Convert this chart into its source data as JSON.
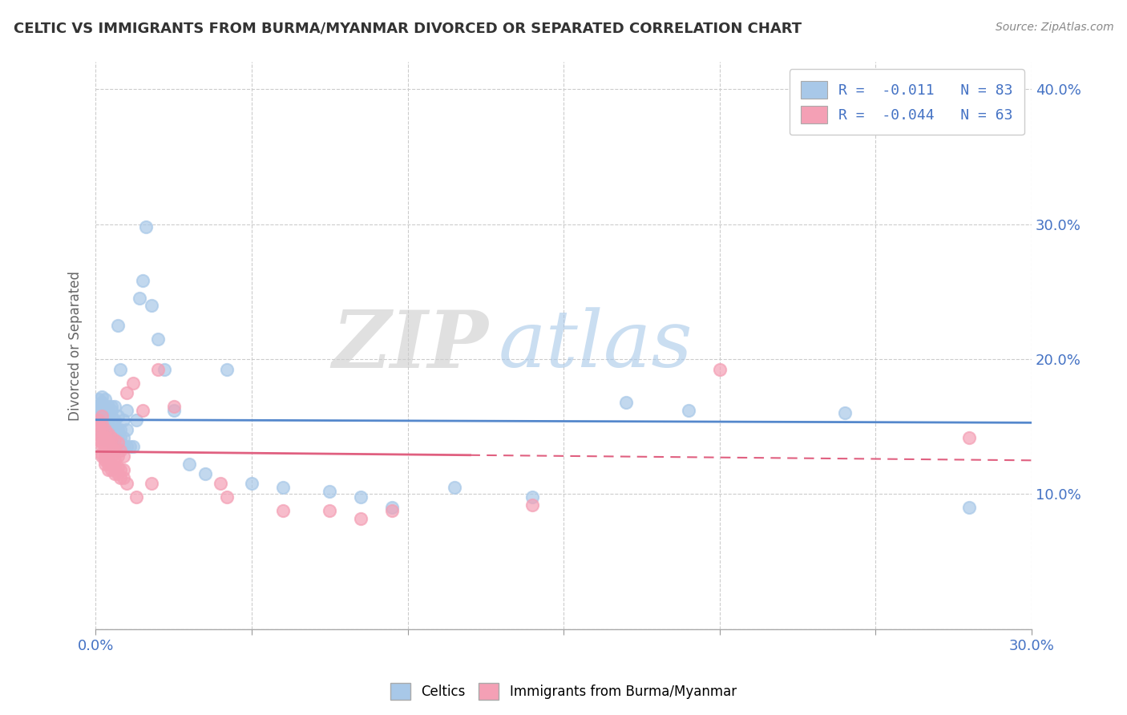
{
  "title": "CELTIC VS IMMIGRANTS FROM BURMA/MYANMAR DIVORCED OR SEPARATED CORRELATION CHART",
  "source": "Source: ZipAtlas.com",
  "ylabel": "Divorced or Separated",
  "xlim": [
    0.0,
    0.3
  ],
  "ylim": [
    0.0,
    0.42
  ],
  "blue_R": -0.011,
  "blue_N": 83,
  "pink_R": -0.044,
  "pink_N": 63,
  "blue_color": "#a8c8e8",
  "pink_color": "#f4a0b5",
  "blue_line_color": "#5588cc",
  "pink_line_color": "#e06080",
  "legend_label_blue": "Celtics",
  "legend_label_pink": "Immigrants from Burma/Myanmar",
  "watermark_zip": "ZIP",
  "watermark_atlas": "atlas",
  "blue_scatter_x": [
    0.001,
    0.001,
    0.001,
    0.001,
    0.001,
    0.002,
    0.002,
    0.002,
    0.002,
    0.002,
    0.002,
    0.002,
    0.002,
    0.002,
    0.003,
    0.003,
    0.003,
    0.003,
    0.003,
    0.003,
    0.003,
    0.003,
    0.004,
    0.004,
    0.004,
    0.004,
    0.004,
    0.004,
    0.004,
    0.004,
    0.005,
    0.005,
    0.005,
    0.005,
    0.005,
    0.005,
    0.005,
    0.005,
    0.006,
    0.006,
    0.006,
    0.006,
    0.006,
    0.006,
    0.007,
    0.007,
    0.007,
    0.007,
    0.007,
    0.008,
    0.008,
    0.008,
    0.008,
    0.009,
    0.009,
    0.009,
    0.01,
    0.01,
    0.01,
    0.011,
    0.012,
    0.013,
    0.014,
    0.015,
    0.016,
    0.018,
    0.02,
    0.022,
    0.025,
    0.03,
    0.035,
    0.042,
    0.05,
    0.06,
    0.075,
    0.085,
    0.095,
    0.115,
    0.14,
    0.17,
    0.19,
    0.24,
    0.28
  ],
  "blue_scatter_y": [
    0.155,
    0.16,
    0.162,
    0.165,
    0.17,
    0.145,
    0.148,
    0.152,
    0.155,
    0.158,
    0.162,
    0.165,
    0.168,
    0.172,
    0.14,
    0.145,
    0.148,
    0.152,
    0.158,
    0.162,
    0.165,
    0.17,
    0.14,
    0.142,
    0.145,
    0.148,
    0.152,
    0.158,
    0.162,
    0.165,
    0.138,
    0.142,
    0.145,
    0.148,
    0.152,
    0.158,
    0.162,
    0.165,
    0.14,
    0.142,
    0.145,
    0.148,
    0.155,
    0.165,
    0.138,
    0.142,
    0.148,
    0.158,
    0.225,
    0.138,
    0.142,
    0.148,
    0.192,
    0.135,
    0.142,
    0.155,
    0.135,
    0.148,
    0.162,
    0.135,
    0.135,
    0.155,
    0.245,
    0.258,
    0.298,
    0.24,
    0.215,
    0.192,
    0.162,
    0.122,
    0.115,
    0.192,
    0.108,
    0.105,
    0.102,
    0.098,
    0.09,
    0.105,
    0.098,
    0.168,
    0.162,
    0.16,
    0.09
  ],
  "pink_scatter_x": [
    0.001,
    0.001,
    0.001,
    0.001,
    0.001,
    0.002,
    0.002,
    0.002,
    0.002,
    0.002,
    0.002,
    0.002,
    0.002,
    0.003,
    0.003,
    0.003,
    0.003,
    0.003,
    0.003,
    0.003,
    0.004,
    0.004,
    0.004,
    0.004,
    0.004,
    0.004,
    0.005,
    0.005,
    0.005,
    0.005,
    0.005,
    0.006,
    0.006,
    0.006,
    0.006,
    0.006,
    0.007,
    0.007,
    0.007,
    0.007,
    0.008,
    0.008,
    0.008,
    0.009,
    0.009,
    0.009,
    0.01,
    0.01,
    0.012,
    0.013,
    0.015,
    0.018,
    0.02,
    0.025,
    0.04,
    0.042,
    0.06,
    0.075,
    0.085,
    0.095,
    0.14,
    0.2,
    0.28
  ],
  "pink_scatter_y": [
    0.14,
    0.145,
    0.148,
    0.152,
    0.155,
    0.128,
    0.13,
    0.135,
    0.138,
    0.142,
    0.148,
    0.152,
    0.158,
    0.122,
    0.125,
    0.128,
    0.132,
    0.138,
    0.142,
    0.148,
    0.118,
    0.122,
    0.125,
    0.132,
    0.138,
    0.145,
    0.118,
    0.122,
    0.128,
    0.135,
    0.142,
    0.115,
    0.12,
    0.125,
    0.132,
    0.14,
    0.115,
    0.12,
    0.128,
    0.138,
    0.112,
    0.118,
    0.132,
    0.112,
    0.118,
    0.128,
    0.108,
    0.175,
    0.182,
    0.098,
    0.162,
    0.108,
    0.192,
    0.165,
    0.108,
    0.098,
    0.088,
    0.088,
    0.082,
    0.088,
    0.092,
    0.192,
    0.142
  ]
}
